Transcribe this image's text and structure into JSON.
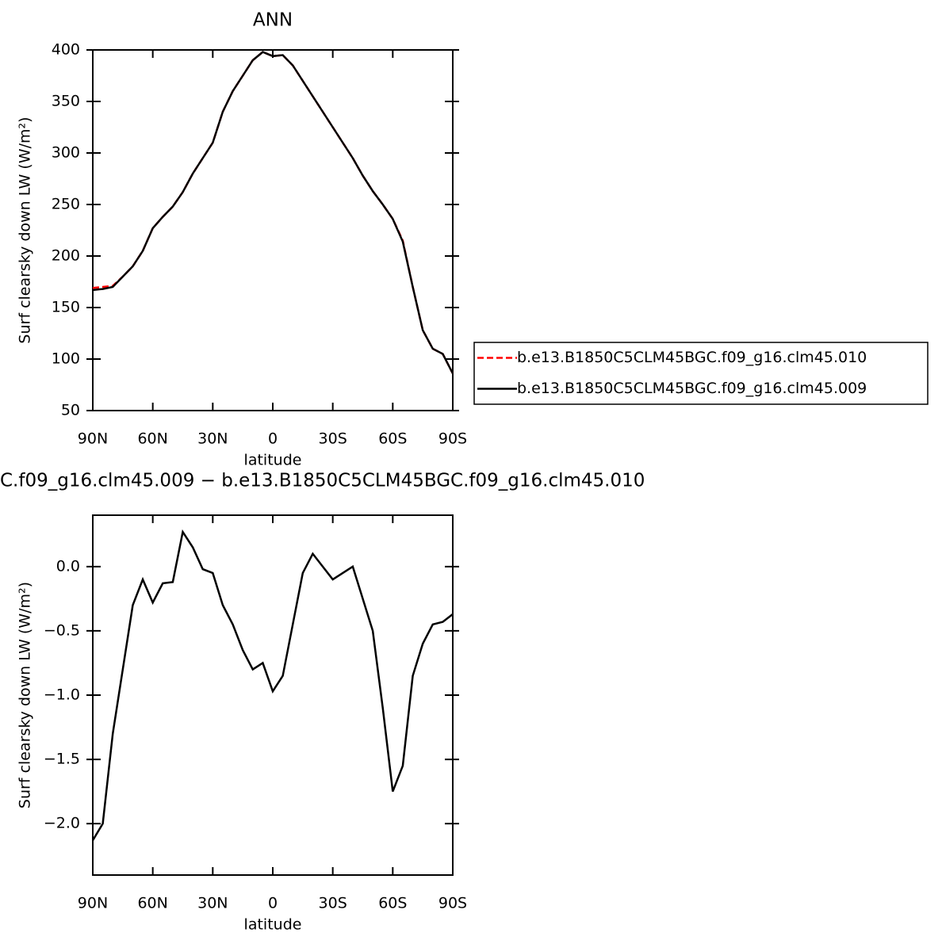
{
  "chart_data": [
    {
      "type": "line",
      "title": "ANN",
      "x_label": "latitude",
      "y_label": "Surf clearsky down LW (W/m²)",
      "x": [
        90,
        85,
        80,
        75,
        70,
        65,
        60,
        55,
        50,
        45,
        40,
        35,
        30,
        25,
        20,
        15,
        10,
        5,
        0,
        -5,
        -10,
        -15,
        -20,
        -25,
        -30,
        -35,
        -40,
        -45,
        -50,
        -55,
        -60,
        -65,
        -70,
        -75,
        -80,
        -85,
        -90
      ],
      "series": [
        {
          "name": "b.e13.B1850C5CLM45BGC.f09_g16.clm45.010",
          "color": "#ff0000",
          "dash": true,
          "values": [
            169,
            170,
            171,
            180,
            190,
            205,
            227,
            238,
            248,
            262,
            280,
            295,
            310,
            340,
            360,
            375,
            390,
            398,
            394,
            395,
            385,
            370,
            355,
            340,
            325,
            310,
            295,
            278,
            263,
            250,
            236,
            215,
            170,
            128,
            110,
            105,
            86
          ]
        },
        {
          "name": "b.e13.B1850C5CLM45BGC.f09_g16.clm45.009",
          "color": "#000000",
          "dash": false,
          "values": [
            167,
            168,
            170,
            180,
            190,
            205,
            227,
            238,
            248,
            262,
            280,
            295,
            310,
            340,
            360,
            375,
            390,
            398,
            394,
            395,
            385,
            370,
            355,
            340,
            325,
            310,
            295,
            278,
            263,
            250,
            236,
            214,
            170,
            128,
            110,
            105,
            86
          ]
        }
      ],
      "xlim": [
        90,
        -90
      ],
      "xticks": [
        {
          "value": 90,
          "label": "90N"
        },
        {
          "value": 60,
          "label": "60N"
        },
        {
          "value": 30,
          "label": "30N"
        },
        0,
        {
          "value": -30,
          "label": "30S"
        },
        {
          "value": -60,
          "label": "60S"
        },
        {
          "value": -90,
          "label": "90S"
        }
      ],
      "ylim": [
        50,
        400
      ],
      "yticks": [
        50,
        100,
        150,
        200,
        250,
        300,
        350,
        400
      ],
      "legend": "right"
    },
    {
      "type": "line",
      "title": "C.f09_g16.clm45.009 − b.e13.B1850C5CLM45BGC.f09_g16.clm45.010",
      "x_label": "latitude",
      "y_label": "Surf clearsky down LW (W/m²)",
      "x": [
        90,
        85,
        80,
        75,
        70,
        65,
        60,
        55,
        50,
        45,
        40,
        35,
        30,
        25,
        20,
        15,
        10,
        5,
        0,
        -5,
        -10,
        -15,
        -20,
        -25,
        -30,
        -35,
        -40,
        -45,
        -50,
        -55,
        -60,
        -65,
        -70,
        -75,
        -80,
        -85,
        -90
      ],
      "series": [
        {
          "color": "#000000",
          "dash": false,
          "values": [
            -2.13,
            -2.0,
            -1.3,
            -0.8,
            -0.3,
            -0.1,
            -0.28,
            -0.13,
            -0.12,
            0.27,
            0.15,
            -0.02,
            -0.05,
            -0.3,
            -0.45,
            -0.65,
            -0.8,
            -0.75,
            -0.97,
            -0.85,
            -0.45,
            -0.05,
            0.1,
            0.0,
            -0.1,
            -0.05,
            0.0,
            -0.25,
            -0.5,
            -1.1,
            -1.75,
            -1.55,
            -0.85,
            -0.6,
            -0.45,
            -0.43,
            -0.37
          ]
        }
      ],
      "xlim": [
        90,
        -90
      ],
      "xticks": [
        {
          "value": 90,
          "label": "90N"
        },
        {
          "value": 60,
          "label": "60N"
        },
        {
          "value": 30,
          "label": "30N"
        },
        0,
        {
          "value": -30,
          "label": "30S"
        },
        {
          "value": -60,
          "label": "60S"
        },
        {
          "value": -90,
          "label": "90S"
        }
      ],
      "ylim": [
        -2.4,
        0.4
      ],
      "yticks": [
        {
          "value": -2,
          "label": "−2.0"
        },
        {
          "value": -1.5,
          "label": "−1.5"
        },
        {
          "value": -1,
          "label": "−1.0"
        },
        {
          "value": -0.5,
          "label": "−0.5"
        },
        {
          "value": 0,
          "label": "0.0"
        }
      ]
    }
  ]
}
